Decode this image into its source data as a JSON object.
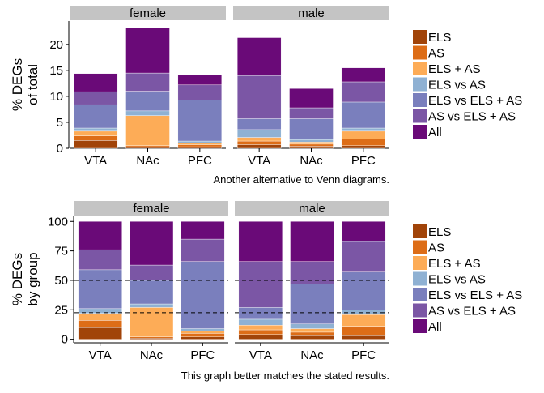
{
  "legend": [
    {
      "name": "ELS",
      "color": "#a14409"
    },
    {
      "name": "AS",
      "color": "#dd6d17"
    },
    {
      "name": "ELS + AS",
      "color": "#fdac57"
    },
    {
      "name": "ELS vs AS",
      "color": "#8fb1d3"
    },
    {
      "name": "ELS vs ELS + AS",
      "color": "#7a7fbd"
    },
    {
      "name": "AS vs ELS + AS",
      "color": "#7b56a5"
    },
    {
      "name": "All",
      "color": "#6a0a78"
    }
  ],
  "chart_data": [
    {
      "type": "bar",
      "stacked": true,
      "panels": [
        "female",
        "male"
      ],
      "categories": [
        "VTA",
        "NAc",
        "PFC"
      ],
      "ylabel_lines": [
        "% DEGs",
        "of total"
      ],
      "ylim": [
        0,
        24.5
      ],
      "yticks": [
        0,
        5,
        10,
        15,
        20
      ],
      "caption": "Another alternative to Venn diagrams.",
      "bars": {
        "female": [
          [
            1.5,
            0.9,
            0.9,
            0.6,
            4.5,
            2.5,
            3.5
          ],
          [
            0.3,
            0.2,
            5.8,
            0.9,
            3.8,
            3.5,
            8.7
          ],
          [
            0.3,
            0.4,
            0.3,
            0.4,
            7.9,
            2.9,
            2.0
          ]
        ],
        "male": [
          [
            0.7,
            0.7,
            0.7,
            1.5,
            2.1,
            8.3,
            7.3
          ],
          [
            0.4,
            0.4,
            0.4,
            0.5,
            4.0,
            2.1,
            3.7
          ],
          [
            0.5,
            1.3,
            1.5,
            0.6,
            5.0,
            3.9,
            2.7
          ]
        ]
      }
    },
    {
      "type": "bar",
      "stacked": true,
      "panels": [
        "female",
        "male"
      ],
      "categories": [
        "VTA",
        "NAc",
        "PFC"
      ],
      "ylabel_lines": [
        "% DEGs",
        "by group"
      ],
      "ylim": [
        -3,
        105
      ],
      "yticks": [
        0,
        25,
        50,
        75,
        100
      ],
      "hlines": [
        50,
        22.5
      ],
      "caption": "This graph better matches the stated results.",
      "bars": {
        "female": [
          [
            10,
            6,
            6,
            4,
            33,
            17,
            24
          ],
          [
            1,
            1,
            25,
            3,
            20,
            13,
            37
          ],
          [
            2,
            3,
            2,
            2,
            57,
            19,
            15
          ]
        ],
        "male": [
          [
            4,
            4,
            4,
            5,
            10,
            39,
            34
          ],
          [
            3,
            3,
            3,
            4,
            34,
            19,
            34
          ],
          [
            3,
            8,
            10,
            4,
            32,
            26,
            17
          ]
        ]
      }
    }
  ]
}
